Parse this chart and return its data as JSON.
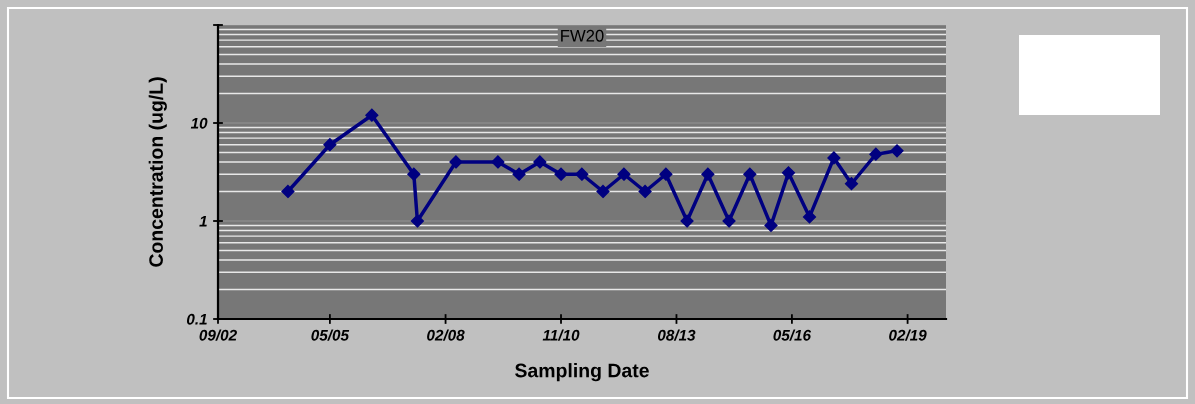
{
  "chart_data": {
    "type": "line",
    "title": "FW20",
    "xlabel": "Sampling Date",
    "ylabel": "Concentration (ug/L)",
    "x": [
      "2004-05",
      "2005-05",
      "2006-05",
      "2007-05",
      "2007-06",
      "2008-05",
      "2009-05",
      "2009-11",
      "2010-05",
      "2010-11",
      "2011-05",
      "2011-11",
      "2012-05",
      "2012-11",
      "2013-05",
      "2013-11",
      "2014-05",
      "2014-11",
      "2015-05",
      "2015-11",
      "2016-04",
      "2016-10",
      "2017-05",
      "2017-10",
      "2018-05",
      "2018-11"
    ],
    "series": [
      {
        "color": "#000080",
        "values": [
          2,
          6,
          12,
          3,
          1,
          4,
          4,
          3,
          4,
          3,
          3,
          2,
          3,
          2,
          3,
          1,
          3,
          1,
          3,
          0.9,
          3.1,
          1.1,
          4.4,
          2.4,
          4.8,
          5.2
        ]
      }
    ],
    "log": true,
    "ylim": [
      0.1,
      100
    ],
    "yticks": [
      0.1,
      1,
      10,
      {
        "value": 100,
        "label": null
      }
    ],
    "xlim": [
      "2002-09-01",
      "2020-01-01"
    ],
    "xticks": [
      {
        "value": "2002-09-01",
        "label": "09/02"
      },
      {
        "value": "2005-05-01",
        "label": "05/05"
      },
      {
        "value": "2008-02-01",
        "label": "02/08"
      },
      {
        "value": "2010-11-01",
        "label": "11/10"
      },
      {
        "value": "2013-08-01",
        "label": "08/13"
      },
      {
        "value": "2016-05-01",
        "label": "05/16"
      },
      {
        "value": "2019-02-01",
        "label": "02/19"
      }
    ],
    "grid": "y",
    "marker": "diamond",
    "line_style": "solid"
  }
}
